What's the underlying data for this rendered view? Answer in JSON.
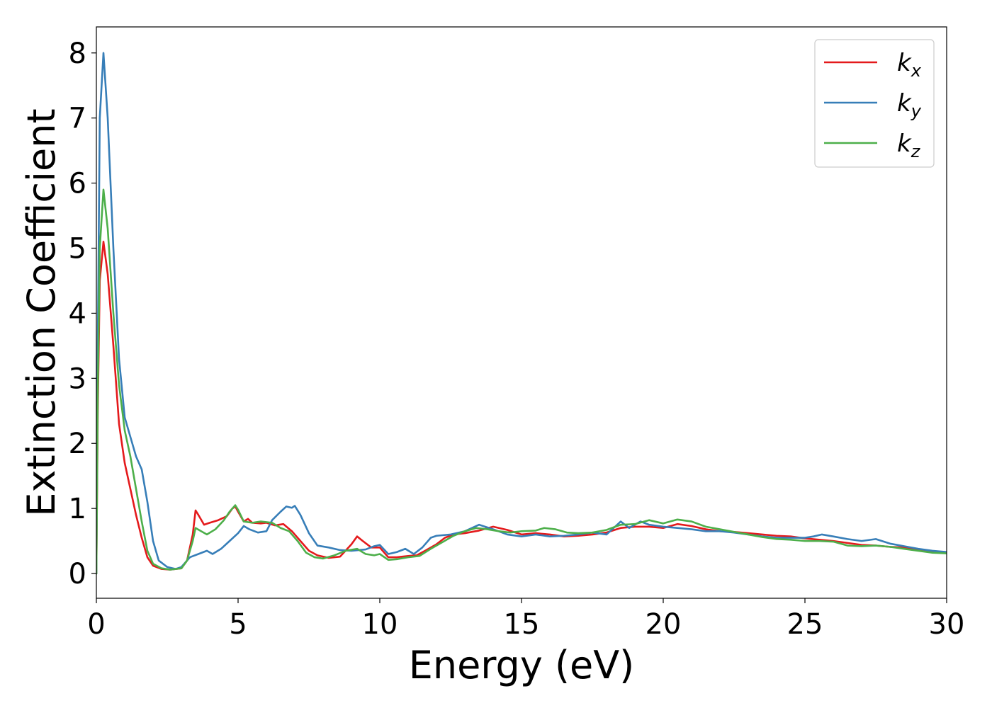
{
  "chart_data": {
    "type": "line",
    "title": "",
    "xlabel": "Energy (eV)",
    "ylabel": "Extinction Coefficient",
    "xlim": [
      0,
      30
    ],
    "ylim": [
      -0.38,
      8.4
    ],
    "xticks": [
      0,
      5,
      10,
      15,
      20,
      25,
      30
    ],
    "yticks": [
      0,
      1,
      2,
      3,
      4,
      5,
      6,
      7,
      8
    ],
    "grid": false,
    "legend_position": "top-right",
    "series": [
      {
        "name": "k_x",
        "legend_main": "k",
        "legend_sub": "x",
        "color": "#e41a1c",
        "points": [
          [
            0,
            0
          ],
          [
            0.05,
            2.5
          ],
          [
            0.12,
            4.5
          ],
          [
            0.25,
            5.1
          ],
          [
            0.4,
            4.6
          ],
          [
            0.6,
            3.5
          ],
          [
            0.8,
            2.3
          ],
          [
            1.0,
            1.7
          ],
          [
            1.2,
            1.3
          ],
          [
            1.4,
            0.9
          ],
          [
            1.6,
            0.55
          ],
          [
            1.8,
            0.25
          ],
          [
            2.0,
            0.12
          ],
          [
            2.3,
            0.07
          ],
          [
            2.6,
            0.06
          ],
          [
            3.0,
            0.08
          ],
          [
            3.2,
            0.2
          ],
          [
            3.4,
            0.6
          ],
          [
            3.5,
            0.97
          ],
          [
            3.6,
            0.9
          ],
          [
            3.8,
            0.75
          ],
          [
            4.0,
            0.78
          ],
          [
            4.3,
            0.82
          ],
          [
            4.6,
            0.88
          ],
          [
            4.8,
            1.0
          ],
          [
            4.9,
            1.03
          ],
          [
            5.0,
            0.95
          ],
          [
            5.2,
            0.8
          ],
          [
            5.35,
            0.84
          ],
          [
            5.5,
            0.78
          ],
          [
            5.8,
            0.77
          ],
          [
            6.0,
            0.78
          ],
          [
            6.3,
            0.74
          ],
          [
            6.6,
            0.76
          ],
          [
            6.9,
            0.65
          ],
          [
            7.2,
            0.5
          ],
          [
            7.5,
            0.35
          ],
          [
            7.8,
            0.28
          ],
          [
            8.2,
            0.24
          ],
          [
            8.6,
            0.26
          ],
          [
            9.0,
            0.45
          ],
          [
            9.2,
            0.57
          ],
          [
            9.4,
            0.5
          ],
          [
            9.7,
            0.4
          ],
          [
            10.0,
            0.4
          ],
          [
            10.3,
            0.25
          ],
          [
            10.6,
            0.25
          ],
          [
            11.0,
            0.27
          ],
          [
            11.3,
            0.28
          ],
          [
            11.6,
            0.35
          ],
          [
            12.0,
            0.45
          ],
          [
            12.3,
            0.55
          ],
          [
            12.6,
            0.6
          ],
          [
            13.0,
            0.62
          ],
          [
            13.5,
            0.66
          ],
          [
            14.0,
            0.72
          ],
          [
            14.5,
            0.67
          ],
          [
            15.0,
            0.6
          ],
          [
            15.5,
            0.62
          ],
          [
            16.0,
            0.6
          ],
          [
            16.5,
            0.57
          ],
          [
            17.0,
            0.58
          ],
          [
            17.5,
            0.6
          ],
          [
            18.0,
            0.63
          ],
          [
            18.5,
            0.7
          ],
          [
            19.0,
            0.72
          ],
          [
            19.5,
            0.72
          ],
          [
            20.0,
            0.7
          ],
          [
            20.5,
            0.76
          ],
          [
            21.0,
            0.73
          ],
          [
            21.5,
            0.68
          ],
          [
            22.0,
            0.65
          ],
          [
            22.5,
            0.64
          ],
          [
            23.0,
            0.62
          ],
          [
            23.5,
            0.6
          ],
          [
            24.0,
            0.58
          ],
          [
            24.5,
            0.57
          ],
          [
            25.0,
            0.54
          ],
          [
            25.5,
            0.52
          ],
          [
            26.0,
            0.5
          ],
          [
            26.5,
            0.47
          ],
          [
            27.0,
            0.44
          ],
          [
            27.5,
            0.43
          ],
          [
            28.0,
            0.41
          ],
          [
            28.5,
            0.4
          ],
          [
            29.0,
            0.37
          ],
          [
            29.5,
            0.34
          ],
          [
            30.0,
            0.32
          ]
        ]
      },
      {
        "name": "k_y",
        "legend_main": "k",
        "legend_sub": "y",
        "color": "#377eb8",
        "points": [
          [
            0,
            0
          ],
          [
            0.05,
            3.5
          ],
          [
            0.12,
            7.0
          ],
          [
            0.25,
            8.0
          ],
          [
            0.4,
            7.0
          ],
          [
            0.6,
            5.0
          ],
          [
            0.8,
            3.3
          ],
          [
            1.0,
            2.4
          ],
          [
            1.2,
            2.1
          ],
          [
            1.4,
            1.8
          ],
          [
            1.6,
            1.6
          ],
          [
            1.8,
            1.1
          ],
          [
            2.0,
            0.5
          ],
          [
            2.2,
            0.2
          ],
          [
            2.5,
            0.1
          ],
          [
            2.8,
            0.07
          ],
          [
            3.0,
            0.1
          ],
          [
            3.3,
            0.25
          ],
          [
            3.6,
            0.3
          ],
          [
            3.9,
            0.35
          ],
          [
            4.1,
            0.3
          ],
          [
            4.4,
            0.38
          ],
          [
            4.7,
            0.5
          ],
          [
            5.0,
            0.62
          ],
          [
            5.2,
            0.73
          ],
          [
            5.4,
            0.68
          ],
          [
            5.7,
            0.63
          ],
          [
            6.0,
            0.65
          ],
          [
            6.2,
            0.82
          ],
          [
            6.5,
            0.95
          ],
          [
            6.7,
            1.03
          ],
          [
            6.9,
            1.01
          ],
          [
            7.0,
            1.04
          ],
          [
            7.2,
            0.9
          ],
          [
            7.5,
            0.62
          ],
          [
            7.8,
            0.43
          ],
          [
            8.2,
            0.4
          ],
          [
            8.6,
            0.36
          ],
          [
            9.0,
            0.35
          ],
          [
            9.5,
            0.37
          ],
          [
            9.8,
            0.42
          ],
          [
            10.0,
            0.44
          ],
          [
            10.3,
            0.3
          ],
          [
            10.6,
            0.33
          ],
          [
            10.9,
            0.38
          ],
          [
            11.2,
            0.3
          ],
          [
            11.5,
            0.4
          ],
          [
            11.8,
            0.55
          ],
          [
            12.0,
            0.58
          ],
          [
            12.5,
            0.6
          ],
          [
            13.0,
            0.65
          ],
          [
            13.5,
            0.75
          ],
          [
            14.0,
            0.68
          ],
          [
            14.5,
            0.6
          ],
          [
            15.0,
            0.57
          ],
          [
            15.5,
            0.6
          ],
          [
            16.0,
            0.57
          ],
          [
            16.5,
            0.58
          ],
          [
            17.0,
            0.6
          ],
          [
            17.5,
            0.63
          ],
          [
            18.0,
            0.6
          ],
          [
            18.3,
            0.72
          ],
          [
            18.5,
            0.8
          ],
          [
            18.8,
            0.7
          ],
          [
            19.2,
            0.8
          ],
          [
            19.5,
            0.75
          ],
          [
            20.0,
            0.72
          ],
          [
            20.5,
            0.7
          ],
          [
            21.0,
            0.68
          ],
          [
            21.5,
            0.65
          ],
          [
            22.0,
            0.65
          ],
          [
            22.5,
            0.63
          ],
          [
            23.0,
            0.6
          ],
          [
            23.5,
            0.57
          ],
          [
            24.0,
            0.55
          ],
          [
            24.5,
            0.55
          ],
          [
            25.0,
            0.55
          ],
          [
            25.3,
            0.57
          ],
          [
            25.6,
            0.6
          ],
          [
            26.0,
            0.57
          ],
          [
            26.5,
            0.53
          ],
          [
            27.0,
            0.5
          ],
          [
            27.5,
            0.53
          ],
          [
            28.0,
            0.46
          ],
          [
            28.5,
            0.42
          ],
          [
            29.0,
            0.38
          ],
          [
            29.5,
            0.35
          ],
          [
            30.0,
            0.33
          ]
        ]
      },
      {
        "name": "k_z",
        "legend_main": "k",
        "legend_sub": "z",
        "color": "#4daf4a",
        "points": [
          [
            0,
            0
          ],
          [
            0.05,
            2.8
          ],
          [
            0.12,
            5.0
          ],
          [
            0.25,
            5.9
          ],
          [
            0.4,
            5.3
          ],
          [
            0.6,
            4.0
          ],
          [
            0.8,
            2.9
          ],
          [
            1.0,
            2.2
          ],
          [
            1.2,
            1.8
          ],
          [
            1.4,
            1.3
          ],
          [
            1.6,
            0.8
          ],
          [
            1.8,
            0.35
          ],
          [
            2.0,
            0.15
          ],
          [
            2.3,
            0.08
          ],
          [
            2.6,
            0.06
          ],
          [
            3.0,
            0.08
          ],
          [
            3.2,
            0.2
          ],
          [
            3.4,
            0.5
          ],
          [
            3.5,
            0.7
          ],
          [
            3.7,
            0.65
          ],
          [
            3.9,
            0.6
          ],
          [
            4.2,
            0.68
          ],
          [
            4.5,
            0.82
          ],
          [
            4.7,
            0.95
          ],
          [
            4.9,
            1.05
          ],
          [
            5.0,
            0.98
          ],
          [
            5.2,
            0.8
          ],
          [
            5.5,
            0.78
          ],
          [
            5.8,
            0.8
          ],
          [
            6.2,
            0.78
          ],
          [
            6.5,
            0.7
          ],
          [
            6.8,
            0.65
          ],
          [
            7.1,
            0.5
          ],
          [
            7.4,
            0.32
          ],
          [
            7.7,
            0.25
          ],
          [
            8.0,
            0.23
          ],
          [
            8.4,
            0.28
          ],
          [
            8.8,
            0.35
          ],
          [
            9.2,
            0.38
          ],
          [
            9.5,
            0.3
          ],
          [
            9.8,
            0.28
          ],
          [
            10.0,
            0.3
          ],
          [
            10.3,
            0.21
          ],
          [
            10.6,
            0.22
          ],
          [
            11.0,
            0.25
          ],
          [
            11.4,
            0.27
          ],
          [
            11.8,
            0.38
          ],
          [
            12.2,
            0.48
          ],
          [
            12.6,
            0.58
          ],
          [
            13.0,
            0.65
          ],
          [
            13.4,
            0.7
          ],
          [
            13.8,
            0.68
          ],
          [
            14.2,
            0.65
          ],
          [
            14.6,
            0.63
          ],
          [
            15.0,
            0.65
          ],
          [
            15.5,
            0.66
          ],
          [
            15.8,
            0.7
          ],
          [
            16.2,
            0.68
          ],
          [
            16.6,
            0.63
          ],
          [
            17.0,
            0.62
          ],
          [
            17.5,
            0.63
          ],
          [
            18.0,
            0.67
          ],
          [
            18.5,
            0.75
          ],
          [
            19.0,
            0.76
          ],
          [
            19.5,
            0.82
          ],
          [
            20.0,
            0.77
          ],
          [
            20.5,
            0.83
          ],
          [
            21.0,
            0.8
          ],
          [
            21.5,
            0.72
          ],
          [
            22.0,
            0.68
          ],
          [
            22.5,
            0.64
          ],
          [
            23.0,
            0.6
          ],
          [
            23.5,
            0.56
          ],
          [
            24.0,
            0.53
          ],
          [
            24.5,
            0.52
          ],
          [
            25.0,
            0.5
          ],
          [
            25.5,
            0.5
          ],
          [
            26.0,
            0.49
          ],
          [
            26.5,
            0.43
          ],
          [
            27.0,
            0.42
          ],
          [
            27.5,
            0.43
          ],
          [
            28.0,
            0.41
          ],
          [
            28.5,
            0.38
          ],
          [
            29.0,
            0.35
          ],
          [
            29.5,
            0.32
          ],
          [
            30.0,
            0.31
          ]
        ]
      }
    ]
  }
}
